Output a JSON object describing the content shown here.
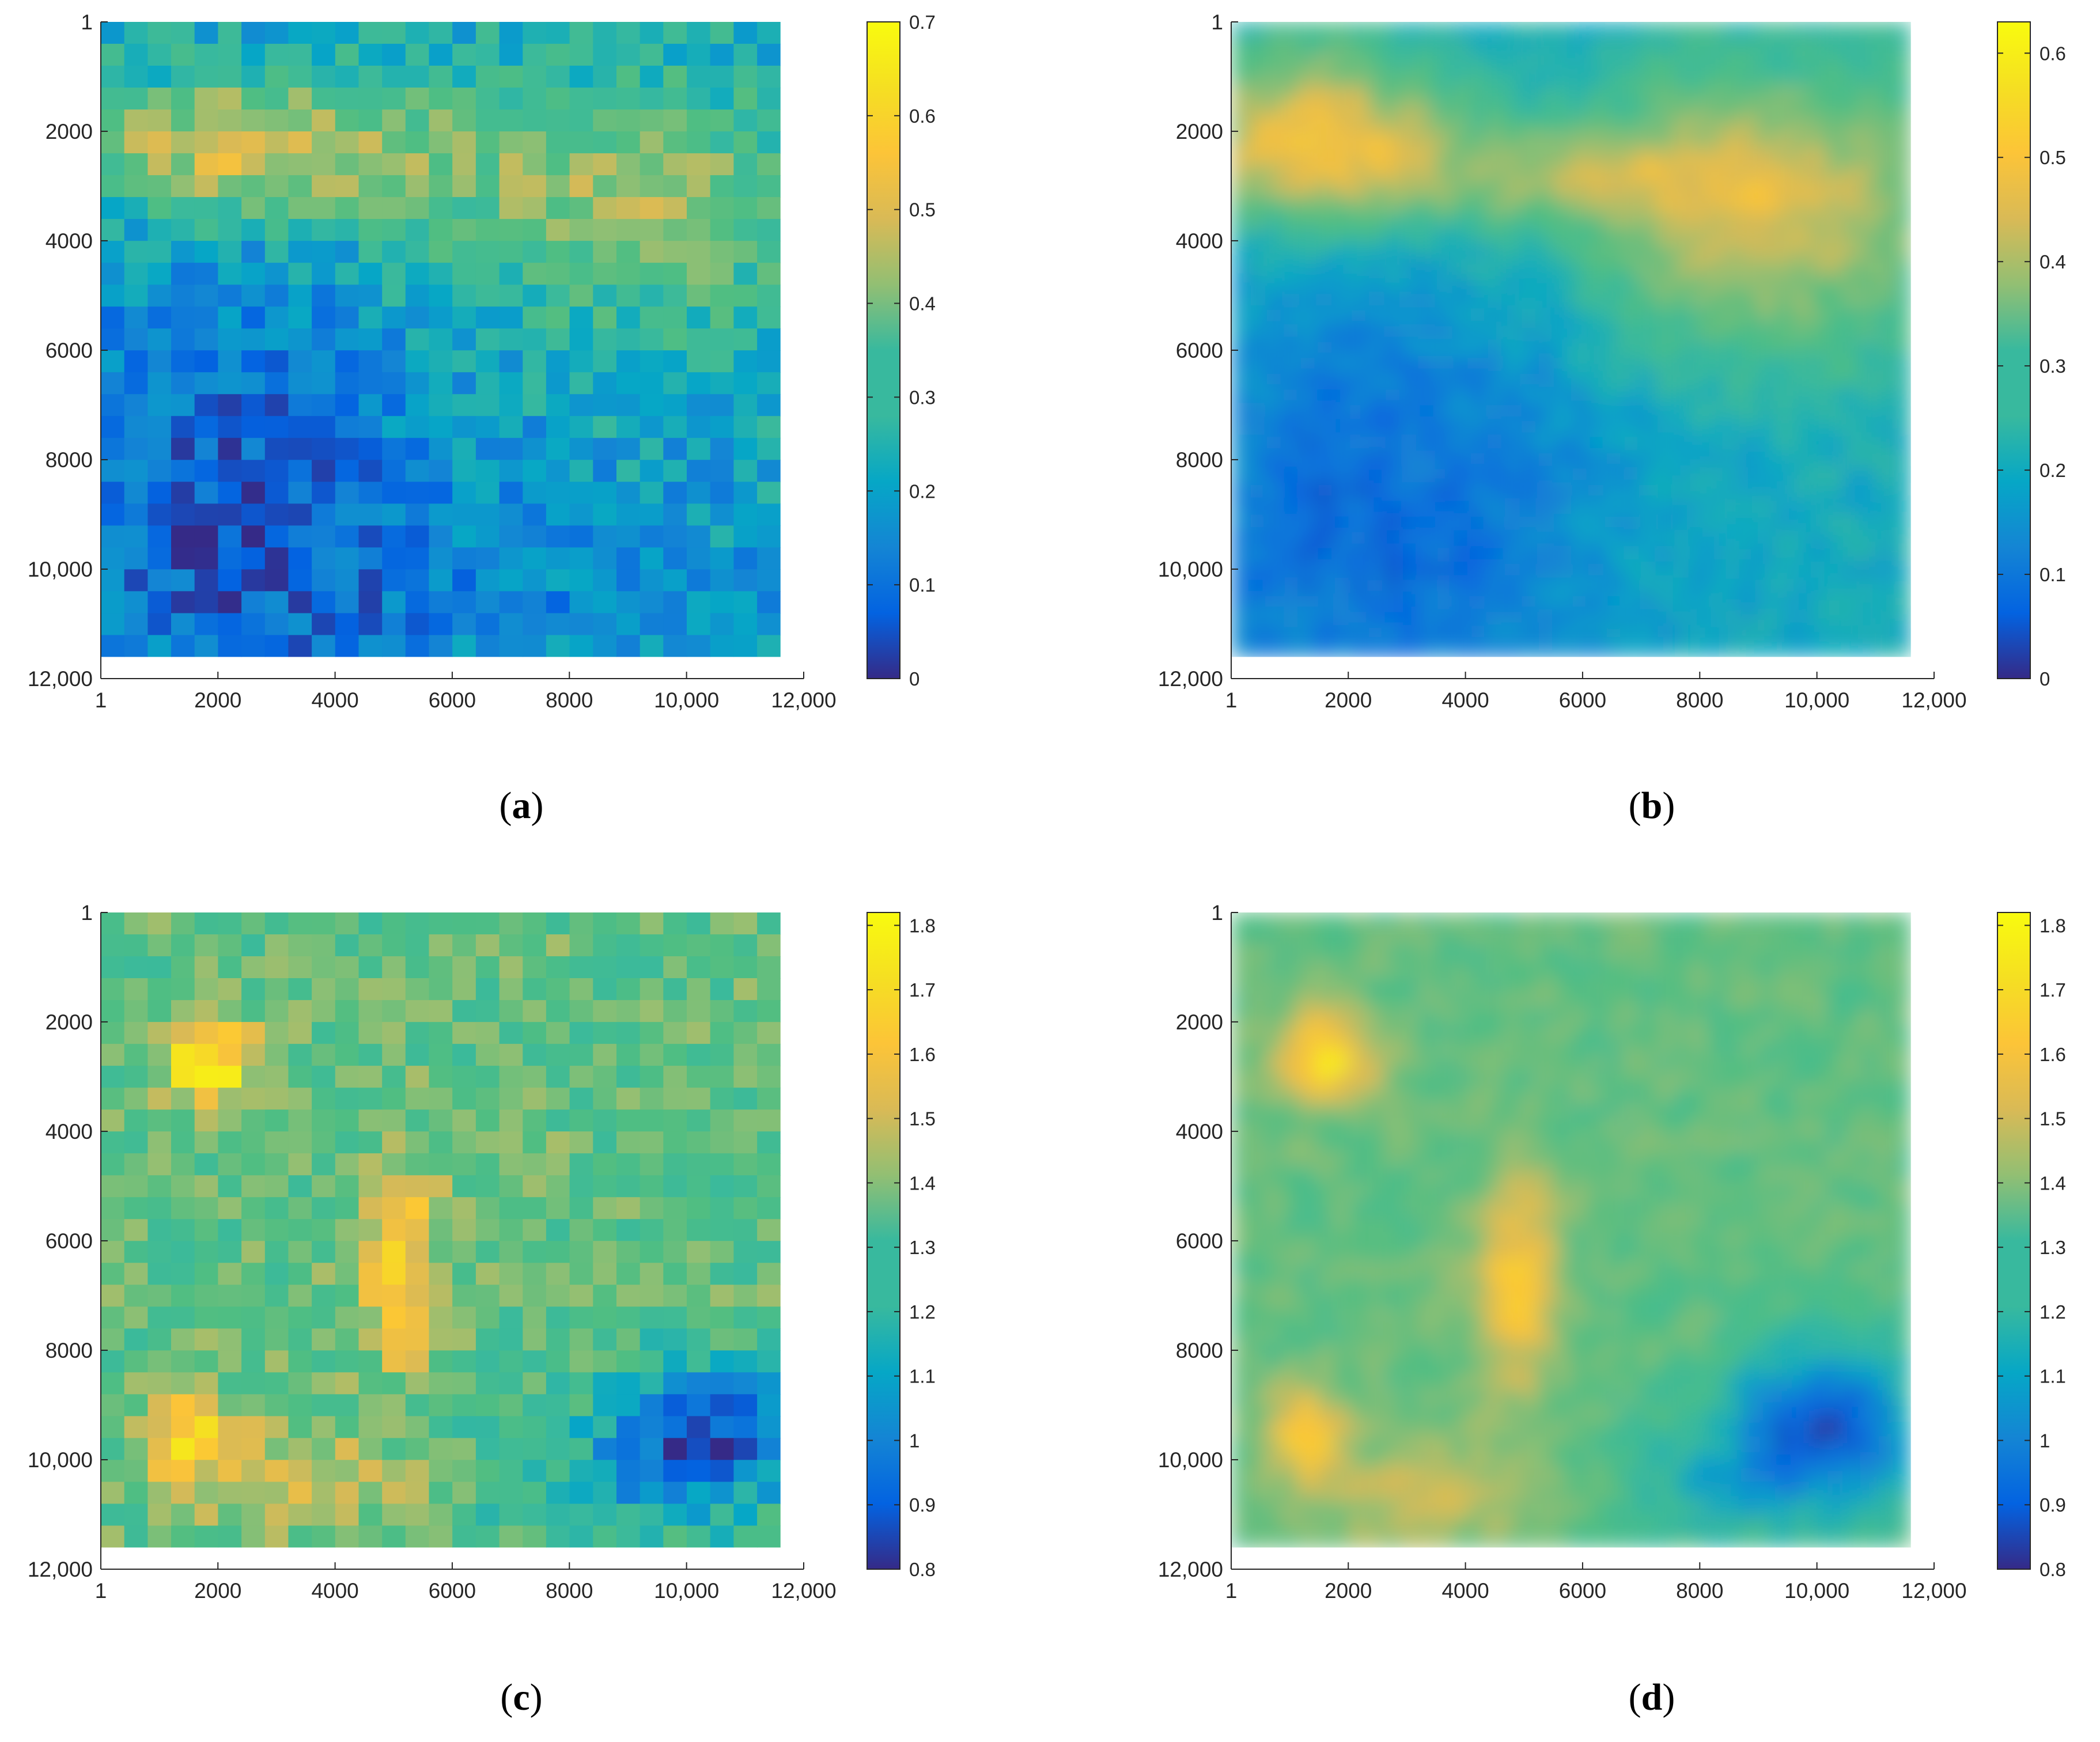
{
  "chart_data": [
    {
      "type": "heatmap",
      "panel": "a",
      "caption_label": "a",
      "rendering": "pixelated",
      "x_ticks": [
        "1",
        "2000",
        "4000",
        "6000",
        "8000",
        "10,000",
        "12,000"
      ],
      "y_ticks": [
        "1",
        "2000",
        "4000",
        "6000",
        "8000",
        "10,000",
        "12,000"
      ],
      "xlim": [
        1,
        12000
      ],
      "ylim": [
        1,
        12000
      ],
      "grid": [
        29,
        29
      ],
      "colorbar_ticks": [
        "0",
        "0.1",
        "0.2",
        "0.3",
        "0.4",
        "0.5",
        "0.6",
        "0.7"
      ],
      "color_range": [
        0,
        0.7
      ],
      "description": "Upper band (rows ~1500-3500) high values 0.45-0.65; lower-left region low values 0.02-0.15"
    },
    {
      "type": "heatmap",
      "panel": "b",
      "caption_label": "b",
      "rendering": "smooth",
      "x_ticks": [
        "1",
        "2000",
        "4000",
        "6000",
        "8000",
        "10,000",
        "12,000"
      ],
      "y_ticks": [
        "1",
        "2000",
        "4000",
        "6000",
        "8000",
        "10,000",
        "12,000"
      ],
      "xlim": [
        1,
        12000
      ],
      "ylim": [
        1,
        12000
      ],
      "colorbar_ticks": [
        "0",
        "0.1",
        "0.2",
        "0.3",
        "0.4",
        "0.5",
        "0.6"
      ],
      "color_range": [
        0,
        0.63
      ],
      "description": "Interpolated field: diagonal high band from upper-left to upper-right (~0.5-0.6), low values in lower-left (~0.05)"
    },
    {
      "type": "heatmap",
      "panel": "c",
      "caption_label": "c",
      "rendering": "pixelated",
      "x_ticks": [
        "1",
        "2000",
        "4000",
        "6000",
        "8000",
        "10,000",
        "12,000"
      ],
      "y_ticks": [
        "1",
        "2000",
        "4000",
        "6000",
        "8000",
        "10,000",
        "12,000"
      ],
      "xlim": [
        1,
        12000
      ],
      "ylim": [
        1,
        12000
      ],
      "grid": [
        29,
        29
      ],
      "colorbar_ticks": [
        "0.8",
        "0.9",
        "1",
        "1.1",
        "1.2",
        "1.3",
        "1.4",
        "1.5",
        "1.6",
        "1.7",
        "1.8"
      ],
      "color_range": [
        0.8,
        1.82
      ],
      "description": "Mostly 1.3-1.5; hot spots ~1.8 near (2000,3000), (5000,6500), (1500,9500); low ~0.9 lower-right"
    },
    {
      "type": "heatmap",
      "panel": "d",
      "caption_label": "d",
      "rendering": "smooth",
      "x_ticks": [
        "1",
        "2000",
        "4000",
        "6000",
        "8000",
        "10,000",
        "12,000"
      ],
      "y_ticks": [
        "1",
        "2000",
        "4000",
        "6000",
        "8000",
        "10,000",
        "12,000"
      ],
      "xlim": [
        1,
        12000
      ],
      "ylim": [
        1,
        12000
      ],
      "colorbar_ticks": [
        "0.8",
        "0.9",
        "1",
        "1.1",
        "1.2",
        "1.3",
        "1.4",
        "1.5",
        "1.6",
        "1.7",
        "1.8"
      ],
      "color_range": [
        0.8,
        1.82
      ],
      "description": "Interpolated version of (c): hot spots ~1.7-1.8 near (1700,2800), (5000,7000), (1500,9500); low ~0.9 lower-right"
    }
  ]
}
